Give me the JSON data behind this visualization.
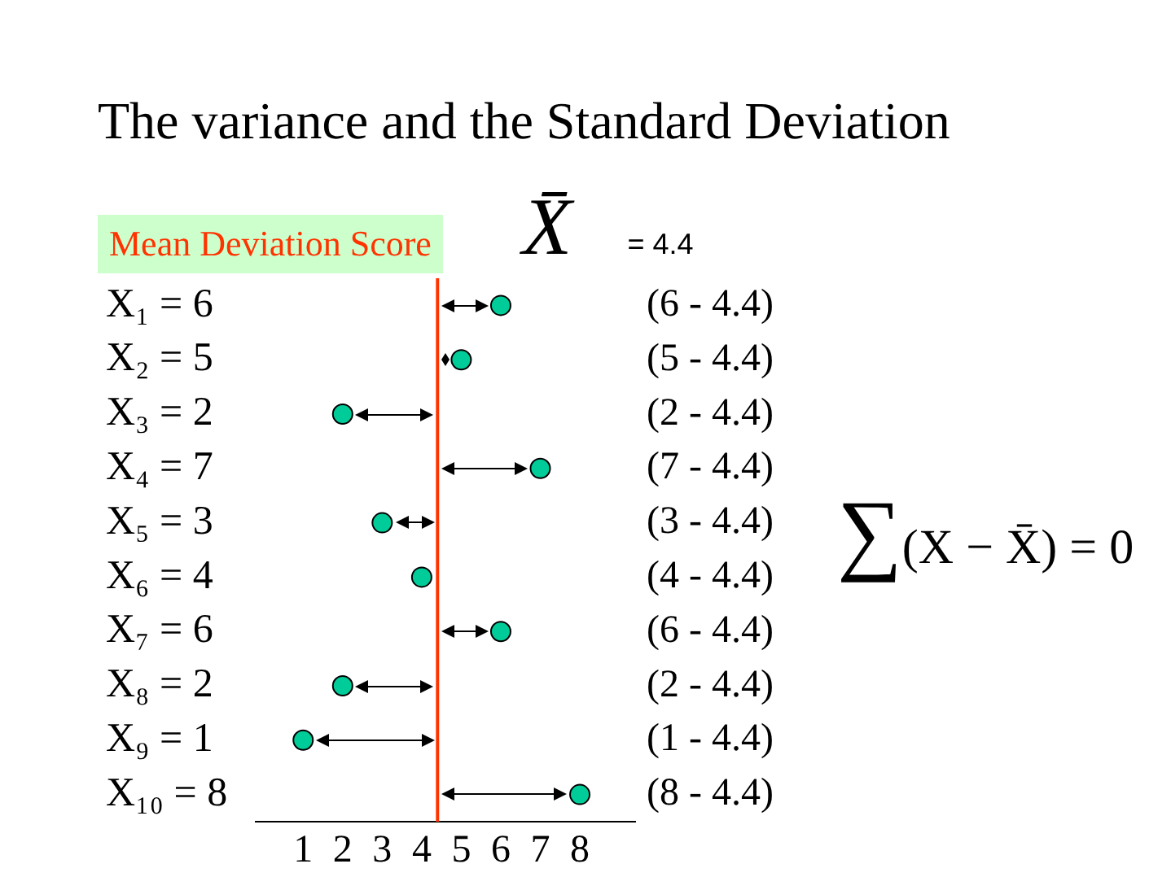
{
  "chart_data": {
    "type": "scatter",
    "title": "The variance and the Standard Deviation",
    "orientation": "horizontal",
    "categories": [
      "X₁ = 6",
      "X₂ = 5",
      "X₃ = 2",
      "X₄ = 7",
      "X₅ = 3",
      "X₆ = 4",
      "X₇ = 6",
      "X₈ = 2",
      "X₉ = 1",
      "X₁₀ = 8"
    ],
    "y2_categories": [
      "(6 - 4.4)",
      "(5 - 4.4)",
      "(2 - 4.4)",
      "(7 - 4.4)",
      "(3 - 4.4)",
      "(4 - 4.4)",
      "(6 - 4.4)",
      "(2 - 4.4)",
      "(1 - 4.4)",
      "(8 - 4.4)"
    ],
    "values": [
      6,
      5,
      2,
      7,
      3,
      4,
      6,
      2,
      1,
      8
    ],
    "color": "#00cc99",
    "marker": "circle",
    "xlim": [
      -0.2,
      9.4
    ],
    "xticks": [
      1,
      2,
      3,
      4,
      5,
      6,
      7,
      8
    ],
    "ref_lines": [
      {
        "axis": "x",
        "value": 4.4,
        "label": "X̄ = 4.4",
        "color": "#ff3300"
      }
    ],
    "annotations": [
      "Mean Deviation Score",
      "∑(X − X̄) = 0"
    ]
  }
}
